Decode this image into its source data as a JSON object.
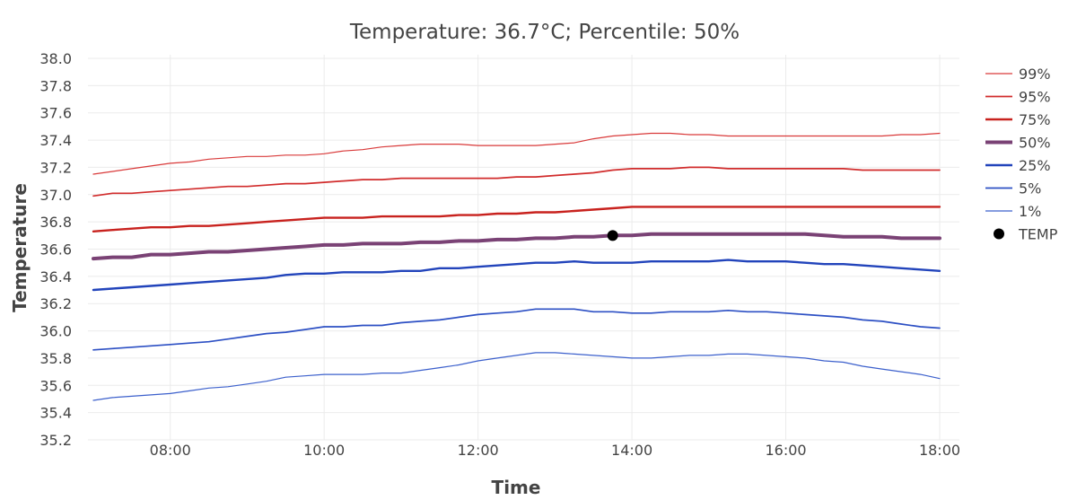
{
  "chart_data": {
    "type": "line",
    "title": "Temperature: 36.7°C; Percentile: 50%",
    "xlabel": "Time",
    "ylabel": "Temperature",
    "x_unit": "hours",
    "xlim": [
      7.0,
      18.0
    ],
    "ylim": [
      35.2,
      38.0
    ],
    "x_ticks": [
      8,
      10,
      12,
      14,
      16,
      18
    ],
    "x_tick_labels": [
      "08:00",
      "10:00",
      "12:00",
      "14:00",
      "16:00",
      "18:00"
    ],
    "y_ticks": [
      35.2,
      35.4,
      35.6,
      35.8,
      36.0,
      36.2,
      36.4,
      36.6,
      36.8,
      37.0,
      37.2,
      37.4,
      37.6,
      37.8,
      38.0
    ],
    "y_tick_labels": [
      "35.2",
      "35.4",
      "35.6",
      "35.8",
      "36.0",
      "36.2",
      "36.4",
      "36.6",
      "36.8",
      "37.0",
      "37.2",
      "37.4",
      "37.6",
      "37.8",
      "38.0"
    ],
    "grid": true,
    "legend_position": "top-right",
    "x": [
      7.0,
      7.25,
      7.5,
      7.75,
      8.0,
      8.25,
      8.5,
      8.75,
      9.0,
      9.25,
      9.5,
      9.75,
      10.0,
      10.25,
      10.5,
      10.75,
      11.0,
      11.25,
      11.5,
      11.75,
      12.0,
      12.25,
      12.5,
      12.75,
      13.0,
      13.25,
      13.5,
      13.75,
      14.0,
      14.25,
      14.5,
      14.75,
      15.0,
      15.25,
      15.5,
      15.75,
      16.0,
      16.25,
      16.5,
      16.75,
      17.0,
      17.25,
      17.5,
      17.75,
      18.0
    ],
    "series": [
      {
        "name": "99%",
        "color": "#d93a3a",
        "width": 1.2,
        "values": [
          37.15,
          37.17,
          37.19,
          37.21,
          37.23,
          37.24,
          37.26,
          37.27,
          37.28,
          37.28,
          37.29,
          37.29,
          37.3,
          37.32,
          37.33,
          37.35,
          37.36,
          37.37,
          37.37,
          37.37,
          37.36,
          37.36,
          37.36,
          37.36,
          37.37,
          37.38,
          37.41,
          37.43,
          37.44,
          37.45,
          37.45,
          37.44,
          37.44,
          37.43,
          37.43,
          37.43,
          37.43,
          37.43,
          37.43,
          37.43,
          37.43,
          37.43,
          37.44,
          37.44,
          37.45
        ]
      },
      {
        "name": "95%",
        "color": "#d12c2c",
        "width": 1.7,
        "values": [
          36.99,
          37.01,
          37.01,
          37.02,
          37.03,
          37.04,
          37.05,
          37.06,
          37.06,
          37.07,
          37.08,
          37.08,
          37.09,
          37.1,
          37.11,
          37.11,
          37.12,
          37.12,
          37.12,
          37.12,
          37.12,
          37.12,
          37.13,
          37.13,
          37.14,
          37.15,
          37.16,
          37.18,
          37.19,
          37.19,
          37.19,
          37.2,
          37.2,
          37.19,
          37.19,
          37.19,
          37.19,
          37.19,
          37.19,
          37.19,
          37.18,
          37.18,
          37.18,
          37.18,
          37.18
        ]
      },
      {
        "name": "75%",
        "color": "#c8221e",
        "width": 2.4,
        "values": [
          36.73,
          36.74,
          36.75,
          36.76,
          36.76,
          36.77,
          36.77,
          36.78,
          36.79,
          36.8,
          36.81,
          36.82,
          36.83,
          36.83,
          36.83,
          36.84,
          36.84,
          36.84,
          36.84,
          36.85,
          36.85,
          36.86,
          36.86,
          36.87,
          36.87,
          36.88,
          36.89,
          36.9,
          36.91,
          36.91,
          36.91,
          36.91,
          36.91,
          36.91,
          36.91,
          36.91,
          36.91,
          36.91,
          36.91,
          36.91,
          36.91,
          36.91,
          36.91,
          36.91,
          36.91
        ]
      },
      {
        "name": "50%",
        "color": "#7a4275",
        "width": 4,
        "values": [
          36.53,
          36.54,
          36.54,
          36.56,
          36.56,
          36.57,
          36.58,
          36.58,
          36.59,
          36.6,
          36.61,
          36.62,
          36.63,
          36.63,
          36.64,
          36.64,
          36.64,
          36.65,
          36.65,
          36.66,
          36.66,
          36.67,
          36.67,
          36.68,
          36.68,
          36.69,
          36.69,
          36.7,
          36.7,
          36.71,
          36.71,
          36.71,
          36.71,
          36.71,
          36.71,
          36.71,
          36.71,
          36.71,
          36.7,
          36.69,
          36.69,
          36.69,
          36.68,
          36.68,
          36.68
        ]
      },
      {
        "name": "25%",
        "color": "#2244bb",
        "width": 2.4,
        "values": [
          36.3,
          36.31,
          36.32,
          36.33,
          36.34,
          36.35,
          36.36,
          36.37,
          36.38,
          36.39,
          36.41,
          36.42,
          36.42,
          36.43,
          36.43,
          36.43,
          36.44,
          36.44,
          36.46,
          36.46,
          36.47,
          36.48,
          36.49,
          36.5,
          36.5,
          36.51,
          36.5,
          36.5,
          36.5,
          36.51,
          36.51,
          36.51,
          36.51,
          36.52,
          36.51,
          36.51,
          36.51,
          36.5,
          36.49,
          36.49,
          36.48,
          36.47,
          36.46,
          36.45,
          36.44
        ]
      },
      {
        "name": "5%",
        "color": "#2d50c4",
        "width": 1.7,
        "values": [
          35.86,
          35.87,
          35.88,
          35.89,
          35.9,
          35.91,
          35.92,
          35.94,
          35.96,
          35.98,
          35.99,
          36.01,
          36.03,
          36.03,
          36.04,
          36.04,
          36.06,
          36.07,
          36.08,
          36.1,
          36.12,
          36.13,
          36.14,
          36.16,
          36.16,
          36.16,
          36.14,
          36.14,
          36.13,
          36.13,
          36.14,
          36.14,
          36.14,
          36.15,
          36.14,
          36.14,
          36.13,
          36.12,
          36.11,
          36.1,
          36.08,
          36.07,
          36.05,
          36.03,
          36.02
        ]
      },
      {
        "name": "1%",
        "color": "#3c60cc",
        "width": 1.2,
        "values": [
          35.49,
          35.51,
          35.52,
          35.53,
          35.54,
          35.56,
          35.58,
          35.59,
          35.61,
          35.63,
          35.66,
          35.67,
          35.68,
          35.68,
          35.68,
          35.69,
          35.69,
          35.71,
          35.73,
          35.75,
          35.78,
          35.8,
          35.82,
          35.84,
          35.84,
          35.83,
          35.82,
          35.81,
          35.8,
          35.8,
          35.81,
          35.82,
          35.82,
          35.83,
          35.83,
          35.82,
          35.81,
          35.8,
          35.78,
          35.77,
          35.74,
          35.72,
          35.7,
          35.68,
          35.65
        ]
      }
    ],
    "marker": {
      "name": "TEMP",
      "x": 13.75,
      "y": 36.7,
      "color": "#000000"
    }
  }
}
